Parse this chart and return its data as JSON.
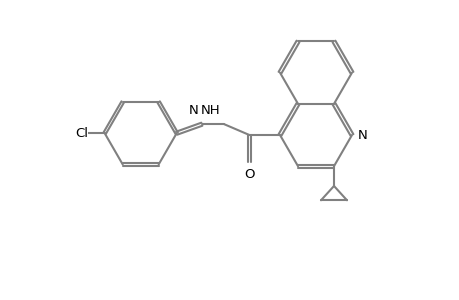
{
  "bg": "#ffffff",
  "lc": "#808080",
  "tc": "#000000",
  "lw": 1.5,
  "dlw": 1.5,
  "sep": 0.016,
  "fs": 9.5,
  "figsize": [
    4.6,
    3.0
  ],
  "dpi": 100,
  "xlim": [
    0.0,
    4.6
  ],
  "ylim": [
    0.0,
    3.0
  ],
  "BL": 0.36
}
